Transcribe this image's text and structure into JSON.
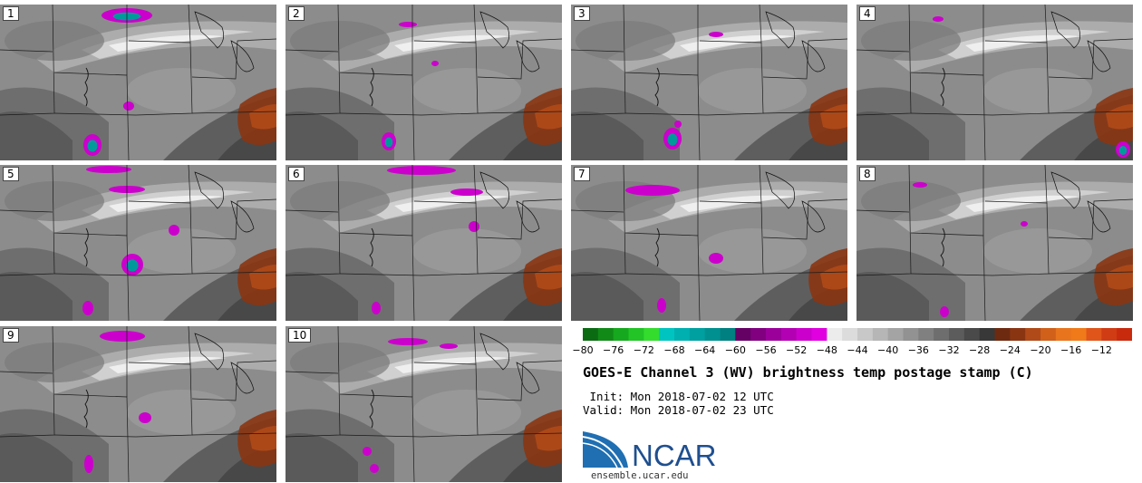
{
  "panels": [
    {
      "label": "1"
    },
    {
      "label": "2"
    },
    {
      "label": "3"
    },
    {
      "label": "4"
    },
    {
      "label": "5"
    },
    {
      "label": "6"
    },
    {
      "label": "7"
    },
    {
      "label": "8"
    },
    {
      "label": "9"
    },
    {
      "label": "10"
    }
  ],
  "colorbar": {
    "ticks": [
      "−80",
      "−76",
      "−72",
      "−68",
      "−64",
      "−60",
      "−56",
      "−52",
      "−48",
      "−44",
      "−40",
      "−36",
      "−32",
      "−28",
      "−24",
      "−20",
      "−16",
      "−12"
    ],
    "colors": [
      "#0b6b13",
      "#118a18",
      "#16a81e",
      "#22c426",
      "#34dc2e",
      "#00c4c0",
      "#00b0b0",
      "#00a0a0",
      "#009090",
      "#008080",
      "#650065",
      "#800080",
      "#9b009b",
      "#b300b3",
      "#cc00cc",
      "#e000e0",
      "#ececec",
      "#dcdcdc",
      "#c8c8c8",
      "#b6b6b6",
      "#a4a4a4",
      "#929292",
      "#808080",
      "#6e6e6e",
      "#5c5c5c",
      "#4a4a4a",
      "#383838",
      "#6e2a10",
      "#8a3512",
      "#b04a18",
      "#d0601a",
      "#e8741e",
      "#f07a1a",
      "#e0551a",
      "#d03c14",
      "#c82a0e"
    ]
  },
  "title": "GOES-E Channel 3 (WV) brightness temp postage stamp (C)",
  "init": " Init: Mon 2018-07-02 12 UTC",
  "valid": "Valid: Mon 2018-07-02 23 UTC",
  "logo_text": "NCAR",
  "url": "ensemble.ucar.edu"
}
